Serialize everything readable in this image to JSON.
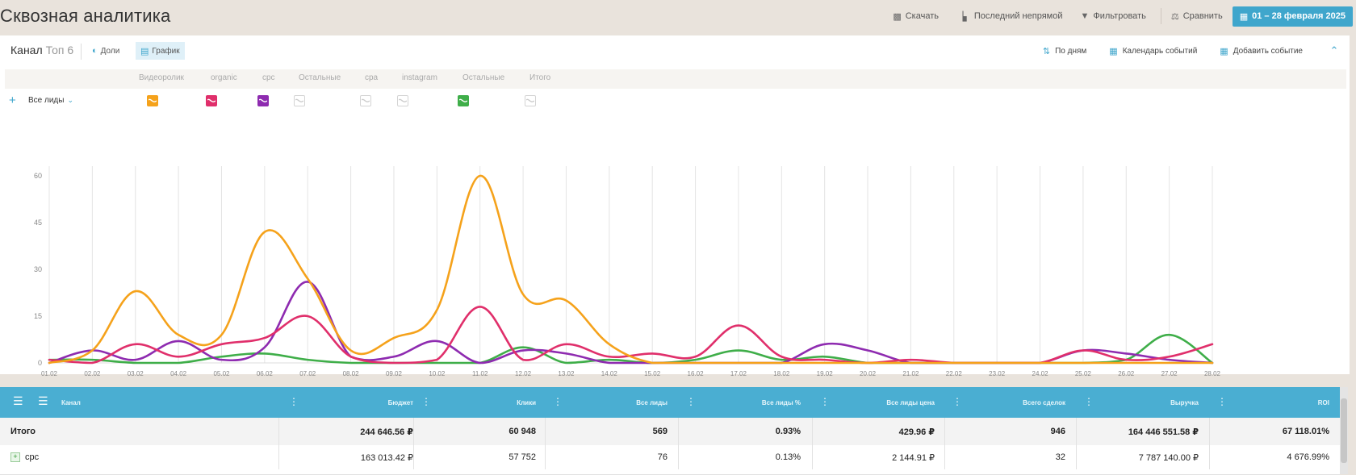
{
  "header": {
    "title": "Сквозная аналитика",
    "actions": [
      {
        "label": "Скачать",
        "icon": "download-icon"
      },
      {
        "label": "Последний непрямой",
        "icon": "attribution-icon"
      },
      {
        "label": "Фильтровать",
        "icon": "filter-icon"
      },
      {
        "label": "Сравнить",
        "icon": "scales-icon"
      }
    ],
    "date_range": "01 – 28 февраля 2025"
  },
  "panel": {
    "channel_label": "Канал",
    "top_label": "Топ 6",
    "view_shares": "Доли",
    "view_chart": "График",
    "by_days": "По дням",
    "events_calendar": "Календарь событий",
    "add_event": "Добавить событие"
  },
  "legend": {
    "headers": [
      "Видеоролик",
      "organic",
      "cpc",
      "Остальные",
      "cpa",
      "instagram",
      "Остальные",
      "Итого"
    ],
    "leads_label": "Все лиды"
  },
  "colors": {
    "accent": "#3fa6cc",
    "Видеоролик": "#f5a21b",
    "organic": "#e02f6b",
    "cpc": "#8e2bb0",
    "Остальные": "#3fae49"
  },
  "chart_data": {
    "type": "line",
    "x": [
      "01.02",
      "02.02",
      "03.02",
      "04.02",
      "05.02",
      "06.02",
      "07.02",
      "08.02",
      "09.02",
      "10.02",
      "11.02",
      "12.02",
      "13.02",
      "14.02",
      "15.02",
      "16.02",
      "17.02",
      "18.02",
      "19.02",
      "20.02",
      "21.02",
      "22.02",
      "23.02",
      "24.02",
      "25.02",
      "26.02",
      "27.02",
      "28.02"
    ],
    "ylim": [
      0,
      60
    ],
    "yticks": [
      0,
      15,
      30,
      45,
      60
    ],
    "grid": true,
    "series": [
      {
        "name": "Видеоролик",
        "color": "#f5a21b",
        "values": [
          0,
          4,
          23,
          9,
          9,
          42,
          27,
          4,
          8,
          17,
          60,
          22,
          20,
          6,
          0,
          0,
          0,
          0,
          0,
          0,
          0,
          0,
          0,
          0,
          0,
          0,
          0,
          0
        ]
      },
      {
        "name": "organic",
        "color": "#e02f6b",
        "values": [
          1,
          0,
          6,
          2,
          6,
          8,
          15,
          2,
          0,
          1,
          18,
          1,
          6,
          2,
          3,
          2,
          12,
          2,
          1,
          0,
          1,
          0,
          0,
          0,
          4,
          1,
          2,
          6
        ]
      },
      {
        "name": "cpc",
        "color": "#8e2bb0",
        "values": [
          0,
          4,
          1,
          7,
          1,
          5,
          26,
          2,
          2,
          7,
          0,
          4,
          3,
          0,
          0,
          0,
          0,
          0,
          6,
          4,
          0,
          0,
          0,
          0,
          4,
          3,
          1,
          0
        ]
      },
      {
        "name": "Остальные",
        "color": "#3fae49",
        "values": [
          1,
          1,
          0,
          0,
          2,
          3,
          1,
          0,
          0,
          0,
          0,
          5,
          0,
          1,
          0,
          1,
          4,
          1,
          2,
          0,
          0,
          0,
          0,
          0,
          0,
          1,
          9,
          0
        ]
      }
    ]
  },
  "table": {
    "columns": [
      "Канал",
      "Бюджет",
      "Клики",
      "Все лиды",
      "Все лиды %",
      "Все лиды цена",
      "Всего сделок",
      "Выручка",
      "ROI"
    ],
    "total_row": [
      "Итого",
      "244 646.56 ₽",
      "60 948",
      "569",
      "0.93%",
      "429.96 ₽",
      "946",
      "164 446 551.58 ₽",
      "67 118.01%"
    ],
    "rows": [
      [
        "cpc",
        "163 013.42 ₽",
        "57 752",
        "76",
        "0.13%",
        "2 144.91 ₽",
        "32",
        "7 787 140.00 ₽",
        "4 676.99%"
      ]
    ]
  }
}
